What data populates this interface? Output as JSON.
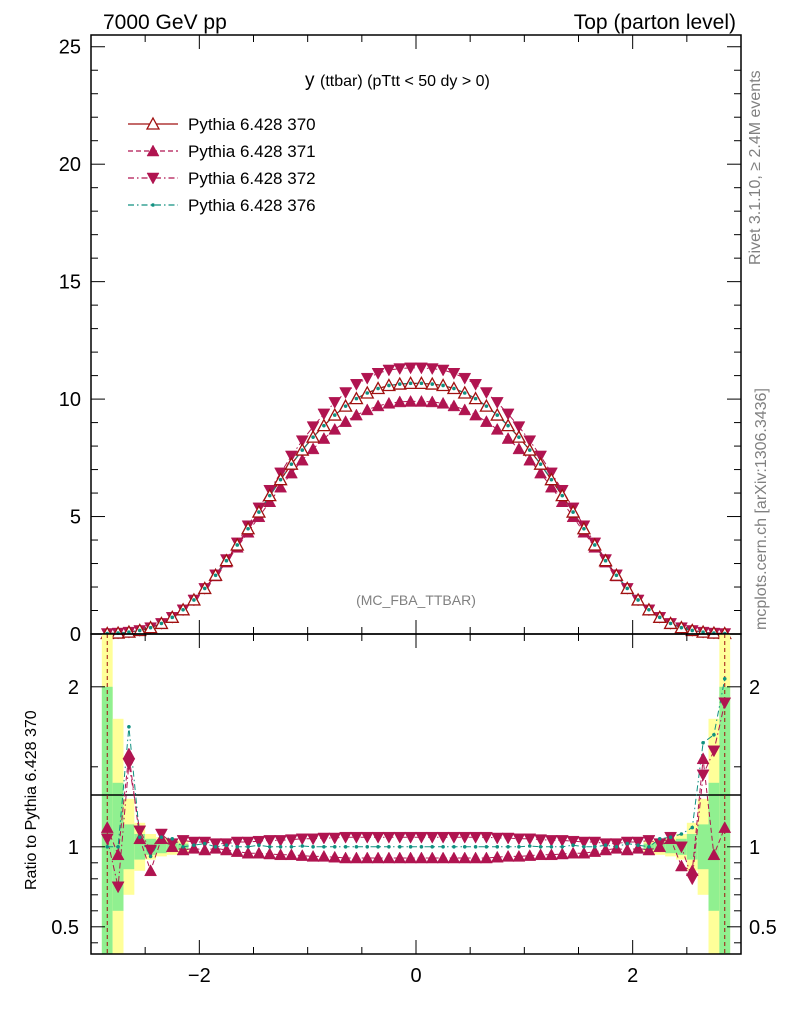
{
  "header": {
    "left": "7000 GeV pp",
    "right": "Top (parton level)"
  },
  "side_labels": {
    "rivet": "Rivet 3.1.10, ≥ 2.4M events",
    "mcplots": "mcplots.cern.ch [arXiv:1306.3436]"
  },
  "chart_data": [
    {
      "panel": "main",
      "type": "line",
      "title_main": "y",
      "title_rest": "(ttbar) (pTtt < 50 dy > 0)",
      "analysis_label": "(MC_FBA_TTBAR)",
      "xlim": [
        -3.0,
        3.0
      ],
      "ylim": [
        0,
        25.5
      ],
      "yticks": [
        0,
        5,
        10,
        15,
        20,
        25
      ],
      "ytick_labels": [
        "0",
        "5",
        "10",
        "15",
        "20",
        "25"
      ],
      "legend_position": "top-left",
      "x": [
        -2.85,
        -2.75,
        -2.65,
        -2.55,
        -2.45,
        -2.35,
        -2.25,
        -2.15,
        -2.05,
        -1.95,
        -1.85,
        -1.75,
        -1.65,
        -1.55,
        -1.45,
        -1.35,
        -1.25,
        -1.15,
        -1.05,
        -0.95,
        -0.85,
        -0.75,
        -0.65,
        -0.55,
        -0.45,
        -0.35,
        -0.25,
        -0.15,
        -0.05,
        0.05,
        0.15,
        0.25,
        0.35,
        0.45,
        0.55,
        0.65,
        0.75,
        0.85,
        0.95,
        1.05,
        1.15,
        1.25,
        1.35,
        1.45,
        1.55,
        1.65,
        1.75,
        1.85,
        1.95,
        2.05,
        2.15,
        2.25,
        2.35,
        2.45,
        2.55,
        2.65,
        2.75,
        2.85
      ],
      "series": [
        {
          "name": "Pythia 6.428 370",
          "color": "#a01010",
          "marker": "triangle-open",
          "line": "solid",
          "values": [
            0.02,
            0.04,
            0.08,
            0.15,
            0.27,
            0.45,
            0.71,
            1.03,
            1.45,
            1.94,
            2.5,
            3.12,
            3.79,
            4.48,
            5.19,
            5.89,
            6.57,
            7.23,
            7.83,
            8.38,
            8.87,
            9.32,
            9.7,
            10.02,
            10.26,
            10.45,
            10.58,
            10.64,
            10.67,
            10.67,
            10.64,
            10.58,
            10.45,
            10.26,
            10.02,
            9.7,
            9.32,
            8.87,
            8.38,
            7.83,
            7.23,
            6.57,
            5.89,
            5.19,
            4.48,
            3.79,
            3.12,
            2.5,
            1.94,
            1.45,
            1.03,
            0.71,
            0.45,
            0.27,
            0.15,
            0.08,
            0.04,
            0.02
          ]
        },
        {
          "name": "Pythia 6.428 371",
          "color": "#b01450",
          "marker": "triangle-up-filled",
          "line": "dashed",
          "values": [
            0.02,
            0.04,
            0.08,
            0.15,
            0.27,
            0.45,
            0.71,
            1.03,
            1.45,
            1.94,
            2.47,
            3.06,
            3.69,
            4.33,
            4.99,
            5.63,
            6.25,
            6.85,
            7.4,
            7.88,
            8.32,
            8.71,
            9.04,
            9.32,
            9.54,
            9.71,
            9.82,
            9.88,
            9.9,
            9.9,
            9.88,
            9.82,
            9.71,
            9.54,
            9.32,
            9.04,
            8.71,
            8.32,
            7.88,
            7.4,
            6.85,
            6.25,
            5.63,
            4.99,
            4.33,
            3.69,
            3.06,
            2.47,
            1.94,
            1.45,
            1.03,
            0.71,
            0.45,
            0.27,
            0.15,
            0.08,
            0.04,
            0.02
          ]
        },
        {
          "name": "Pythia 6.428 372",
          "color": "#b01450",
          "marker": "triangle-down-filled",
          "line": "dashdot",
          "values": [
            0.02,
            0.04,
            0.08,
            0.15,
            0.27,
            0.45,
            0.71,
            1.03,
            1.45,
            1.94,
            2.52,
            3.17,
            3.88,
            4.61,
            5.37,
            6.12,
            6.86,
            7.58,
            8.23,
            8.83,
            9.37,
            9.86,
            10.28,
            10.63,
            10.89,
            11.1,
            11.24,
            11.3,
            11.33,
            11.33,
            11.3,
            11.24,
            11.1,
            10.89,
            10.63,
            10.28,
            9.86,
            9.37,
            8.83,
            8.23,
            7.58,
            6.86,
            6.12,
            5.37,
            4.61,
            3.88,
            3.17,
            2.52,
            1.94,
            1.45,
            1.03,
            0.71,
            0.45,
            0.27,
            0.15,
            0.08,
            0.04,
            0.02
          ]
        },
        {
          "name": "Pythia 6.428 376",
          "color": "#109080",
          "marker": "dot",
          "line": "dashdot",
          "values": [
            0.02,
            0.04,
            0.08,
            0.15,
            0.27,
            0.45,
            0.71,
            1.03,
            1.45,
            1.94,
            2.5,
            3.12,
            3.79,
            4.48,
            5.19,
            5.89,
            6.57,
            7.23,
            7.83,
            8.38,
            8.87,
            9.32,
            9.7,
            10.02,
            10.26,
            10.45,
            10.58,
            10.64,
            10.67,
            10.67,
            10.64,
            10.58,
            10.45,
            10.26,
            10.02,
            9.7,
            9.32,
            8.87,
            8.38,
            7.83,
            7.23,
            6.57,
            5.89,
            5.19,
            4.48,
            3.79,
            3.12,
            2.5,
            1.94,
            1.45,
            1.03,
            0.71,
            0.45,
            0.27,
            0.15,
            0.08,
            0.04,
            0.02
          ]
        }
      ]
    },
    {
      "panel": "ratio",
      "type": "line",
      "ylabel": "Ratio to Pythia 6.428 370",
      "xlim": [
        -3.0,
        3.0
      ],
      "ylim": [
        0.33,
        2.33
      ],
      "yticks": [
        0.5,
        1,
        2
      ],
      "ytick_labels": [
        "0.5",
        "1",
        "2"
      ],
      "xticks": [
        -2,
        0,
        2
      ],
      "xtick_labels": [
        "−2",
        "0",
        "2"
      ],
      "band_color_inner": "#90f090",
      "band_color_outer": "#ffff99",
      "band_x": [
        -2.85,
        -2.75,
        -2.65,
        -2.55,
        -2.45,
        -2.35,
        -2.25,
        -2.15,
        2.15,
        2.25,
        2.35,
        2.45,
        2.55,
        2.65,
        2.75,
        2.85
      ],
      "band_inner": [
        1.0,
        0.4,
        0.14,
        0.08,
        0.05,
        0.04,
        0.03,
        0.02,
        0.02,
        0.03,
        0.04,
        0.05,
        0.08,
        0.14,
        0.4,
        1.0
      ],
      "band_outer": [
        1.6,
        0.8,
        0.3,
        0.15,
        0.08,
        0.06,
        0.05,
        0.04,
        0.04,
        0.05,
        0.06,
        0.08,
        0.15,
        0.3,
        0.8,
        1.6
      ],
      "series": [
        {
          "name": "Pythia 6.428 371",
          "values": [
            1.12,
            0.95,
            1.58,
            1.05,
            0.85,
            1.05,
            1.0,
            0.98,
            0.99,
            0.98,
            0.99,
            0.98,
            0.97,
            0.96,
            0.96,
            0.955,
            0.95,
            0.95,
            0.945,
            0.94,
            0.94,
            0.935,
            0.93,
            0.93,
            0.93,
            0.93,
            0.93,
            0.93,
            0.93,
            0.93,
            0.93,
            0.93,
            0.93,
            0.93,
            0.93,
            0.93,
            0.935,
            0.94,
            0.94,
            0.945,
            0.95,
            0.95,
            0.955,
            0.96,
            0.96,
            0.97,
            0.98,
            0.99,
            0.98,
            0.99,
            0.98,
            1.0,
            1.05,
            0.88,
            0.85,
            1.55,
            0.95,
            1.12
          ]
        },
        {
          "name": "Pythia 6.428 372",
          "values": [
            1.05,
            0.75,
            1.52,
            1.1,
            0.98,
            1.08,
            1.02,
            1.04,
            1.03,
            1.03,
            1.02,
            1.02,
            1.03,
            1.03,
            1.035,
            1.04,
            1.04,
            1.045,
            1.05,
            1.05,
            1.055,
            1.055,
            1.06,
            1.06,
            1.06,
            1.06,
            1.06,
            1.06,
            1.06,
            1.06,
            1.06,
            1.06,
            1.06,
            1.06,
            1.06,
            1.06,
            1.055,
            1.055,
            1.05,
            1.05,
            1.045,
            1.04,
            1.04,
            1.035,
            1.03,
            1.03,
            1.02,
            1.02,
            1.03,
            1.03,
            1.04,
            1.02,
            1.06,
            1.0,
            0.8,
            1.45,
            1.6,
            1.9
          ]
        },
        {
          "name": "Pythia 6.428 376",
          "values": [
            1.0,
            1.0,
            1.75,
            1.06,
            0.94,
            1.06,
            1.05,
            1.0,
            1.01,
            1.02,
            1.0,
            1.01,
            1.0,
            1.0,
            1.01,
            1.0,
            1.0,
            1.0,
            1.005,
            1.0,
            1.0,
            1.0,
            1.0,
            1.0,
            1.0,
            1.0,
            1.0,
            1.0,
            1.0,
            1.0,
            1.0,
            1.0,
            1.0,
            1.0,
            1.0,
            1.0,
            1.0,
            1.0,
            1.0,
            1.005,
            1.0,
            1.0,
            1.0,
            1.01,
            1.0,
            1.0,
            1.01,
            1.0,
            1.02,
            1.01,
            1.0,
            1.05,
            1.06,
            1.08,
            1.12,
            1.65,
            1.7,
            2.05
          ]
        }
      ]
    }
  ]
}
